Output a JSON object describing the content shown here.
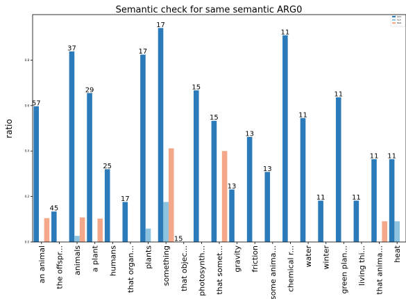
{
  "chart_data": {
    "type": "bar",
    "title": "Semantic check for same semantic ARG0",
    "ylabel": "ratio",
    "xlabel": "",
    "ylim": [
      0,
      1.0
    ],
    "yticks": [
      0.0,
      0.2,
      0.4,
      0.6,
      0.8
    ],
    "ytick_labels": [
      "0.0",
      "0.2",
      "0.4",
      "0.6",
      "0.8"
    ],
    "grid": false,
    "legend_position": "top-right",
    "categories": [
      "an animal",
      "the offspr...",
      "animals",
      "a plant",
      "humans",
      "that organ...",
      "plants",
      "something",
      "that objec...",
      "photosynth...",
      "that somet...",
      "gravity",
      "friction",
      "some anima...",
      "chemical r...",
      "water",
      "winter",
      "green plan...",
      "living thi...",
      "that anima...",
      "heat"
    ],
    "count_labels": [
      "57",
      "45",
      "37",
      "29",
      "25",
      "17",
      "17",
      "17",
      "15",
      "15",
      "15",
      "13",
      "13",
      "13",
      "11",
      "11",
      "11",
      "11",
      "11",
      "11",
      "11"
    ],
    "series": [
      {
        "name": "ACX",
        "color": "#2b7bba",
        "values": [
          0.597,
          0.134,
          0.838,
          0.655,
          0.32,
          0.176,
          0.824,
          0.941,
          0.0,
          0.667,
          0.533,
          0.231,
          0.462,
          0.308,
          0.909,
          0.545,
          0.182,
          0.636,
          0.182,
          0.364,
          0.364
        ]
      },
      {
        "name": "SLX",
        "color": "#8ec3e0",
        "values": [
          0.0,
          0.0,
          0.027,
          0.0,
          0.0,
          0.0,
          0.059,
          0.176,
          0.0,
          0.0,
          0.0,
          0.0,
          0.0,
          0.0,
          0.0,
          0.0,
          0.0,
          0.0,
          0.0,
          0.0,
          0.091
        ]
      },
      {
        "name": "MLX",
        "color": "#f4a889",
        "values": [
          0.105,
          0.0,
          0.108,
          0.103,
          0.0,
          0.0,
          0.0,
          0.412,
          0.0,
          0.0,
          0.4,
          0.0,
          0.0,
          0.0,
          0.0,
          0.0,
          0.0,
          0.0,
          0.0,
          0.091,
          0.0
        ]
      }
    ]
  }
}
